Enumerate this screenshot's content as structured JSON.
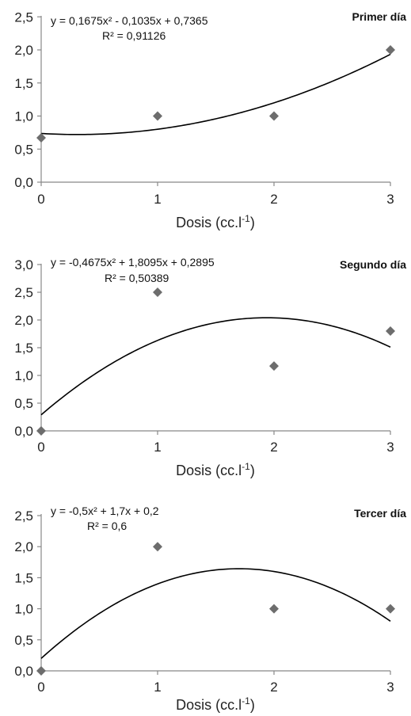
{
  "chart_data": [
    {
      "type": "scatter",
      "title": "Primer día",
      "equation": "y = 0,1675x² - 0,1035x + 0,7365",
      "r2": "R² = 0,91126",
      "xlabel_main": "Dosis (cc.l",
      "xlabel_sup": "-1",
      "xlabel_end": ")",
      "xlim": [
        0,
        3
      ],
      "ylim": [
        0,
        2.5
      ],
      "x_ticks": [
        0,
        1,
        2,
        3
      ],
      "x_tick_labels": [
        "0",
        "1",
        "2",
        "3"
      ],
      "y_ticks": [
        0,
        0.5,
        1,
        1.5,
        2,
        2.5
      ],
      "y_tick_labels": [
        "0,0",
        "0,5",
        "1,0",
        "1,5",
        "2,0",
        "2,5"
      ],
      "points": [
        {
          "x": 0,
          "y": 0.67
        },
        {
          "x": 1,
          "y": 1.0
        },
        {
          "x": 2,
          "y": 1.0
        },
        {
          "x": 3,
          "y": 2.0
        }
      ],
      "trend": {
        "a": 0.1675,
        "b": -0.1035,
        "c": 0.7365
      },
      "marker": "diamond",
      "marker_color": "#6d6d6d",
      "line_color": "#000000"
    },
    {
      "type": "scatter",
      "title": "Segundo día",
      "equation": "y = -0,4675x² + 1,8095x + 0,2895",
      "r2": "R² = 0,50389",
      "xlabel_main": "Dosis (cc.l",
      "xlabel_sup": "-1",
      "xlabel_end": ")",
      "xlim": [
        0,
        3
      ],
      "ylim": [
        0,
        3.0
      ],
      "x_ticks": [
        0,
        1,
        2,
        3
      ],
      "x_tick_labels": [
        "0",
        "1",
        "2",
        "3"
      ],
      "y_ticks": [
        0,
        0.5,
        1,
        1.5,
        2,
        2.5,
        3
      ],
      "y_tick_labels": [
        "0,0",
        "0,5",
        "1,0",
        "1,5",
        "2,0",
        "2,5",
        "3,0"
      ],
      "points": [
        {
          "x": 0,
          "y": 0.0
        },
        {
          "x": 1,
          "y": 2.5
        },
        {
          "x": 2,
          "y": 1.17
        },
        {
          "x": 3,
          "y": 1.8
        }
      ],
      "trend": {
        "a": -0.4675,
        "b": 1.8095,
        "c": 0.2895
      },
      "marker": "diamond",
      "marker_color": "#6d6d6d",
      "line_color": "#000000"
    },
    {
      "type": "scatter",
      "title": "Tercer día",
      "equation": "y = -0,5x² + 1,7x + 0,2",
      "r2": "R² = 0,6",
      "xlabel_main": "Dosis (cc.l",
      "xlabel_sup": "-1",
      "xlabel_end": ")",
      "xlim": [
        0,
        3
      ],
      "ylim": [
        0,
        2.5
      ],
      "x_ticks": [
        0,
        1,
        2,
        3
      ],
      "x_tick_labels": [
        "0",
        "1",
        "2",
        "3"
      ],
      "y_ticks": [
        0,
        0.5,
        1,
        1.5,
        2,
        2.5
      ],
      "y_tick_labels": [
        "0,0",
        "0,5",
        "1,0",
        "1,5",
        "2,0",
        "2,5"
      ],
      "points": [
        {
          "x": 0,
          "y": 0.0
        },
        {
          "x": 1,
          "y": 2.0
        },
        {
          "x": 2,
          "y": 1.0
        },
        {
          "x": 3,
          "y": 1.0
        }
      ],
      "trend": {
        "a": -0.5,
        "b": 1.7,
        "c": 0.2
      },
      "marker": "diamond",
      "marker_color": "#6d6d6d",
      "line_color": "#000000"
    }
  ]
}
